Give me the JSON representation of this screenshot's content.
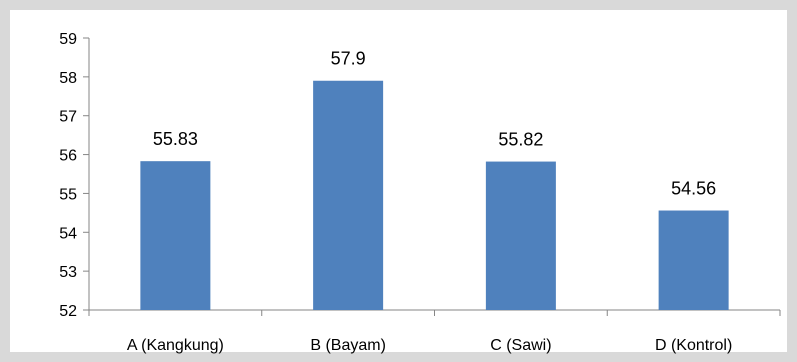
{
  "chart_data": {
    "type": "bar",
    "title": "",
    "xlabel": "",
    "ylabel": "",
    "categories": [
      "A (Kangkung)",
      "B (Bayam)",
      "C (Sawi)",
      "D (Kontrol)"
    ],
    "values": [
      55.83,
      57.9,
      55.82,
      54.56
    ],
    "data_labels": [
      "55.83",
      "57.9",
      "55.82",
      "54.56"
    ],
    "ylim": [
      52,
      59
    ],
    "yticks": [
      52,
      53,
      54,
      55,
      56,
      57,
      58,
      59
    ],
    "grid": false,
    "legend": "none",
    "bar_color": "#4f81bd",
    "axis_color": "#868686"
  }
}
